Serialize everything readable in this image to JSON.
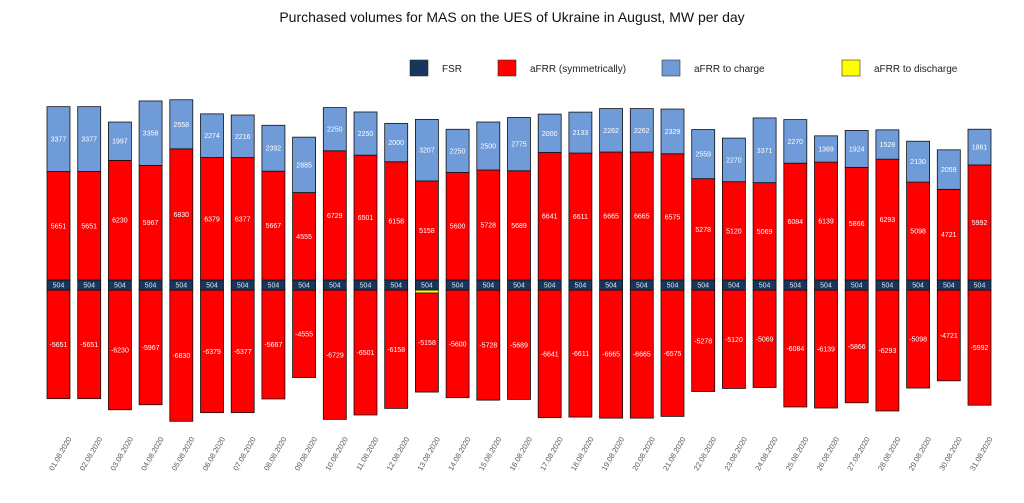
{
  "chart_data": {
    "type": "bar",
    "stacked": true,
    "title": "Purchased volumes for MAS on the UES of Ukraine in August, MW per day",
    "xlabel": "",
    "ylabel": "",
    "legend_position": "top-right",
    "colors": {
      "FSR": "#17365d",
      "aFRR (symmetrically)": "#ff0000",
      "aFRR to charge": "#6f9bd8",
      "aFRR to discharge": "#ffff00"
    },
    "categories": [
      "01.08.2020",
      "02.08.2020",
      "03.08.2020",
      "04.08.2020",
      "05.08.2020",
      "06.08.2020",
      "07.08.2020",
      "08.08.2020",
      "09.08.2020",
      "10.08.2020",
      "11.08.2020",
      "12.08.2020",
      "13.08.2020",
      "14.08.2020",
      "15.08.2020",
      "16.08.2020",
      "17.08.2020",
      "18.08.2020",
      "19.08.2020",
      "20.08.2020",
      "21.08.2020",
      "22.08.2020",
      "23.08.2020",
      "24.08.2020",
      "25.08.2020",
      "26.08.2020",
      "27.08.2020",
      "28.08.2020",
      "29.08.2020",
      "30.08.2020",
      "31.08.2020"
    ],
    "series": [
      {
        "name": "FSR",
        "values": [
          504,
          504,
          504,
          504,
          504,
          504,
          504,
          504,
          504,
          504,
          504,
          504,
          504,
          504,
          504,
          504,
          504,
          504,
          504,
          504,
          504,
          504,
          504,
          504,
          504,
          504,
          504,
          504,
          504,
          504,
          504
        ]
      },
      {
        "name": "aFRR (symmetrically)",
        "values": [
          5651,
          5651,
          6230,
          5967,
          6830,
          6379,
          6377,
          5667,
          4555,
          6729,
          6501,
          6158,
          5158,
          5600,
          5728,
          5689,
          6641,
          6611,
          6665,
          6665,
          6575,
          5278,
          5120,
          5069,
          6084,
          6139,
          5866,
          6293,
          5098,
          4721,
          5992
        ]
      },
      {
        "name": "aFRR to charge",
        "values": [
          3377,
          3377,
          1997,
          3358,
          2558,
          2274,
          2216,
          2392,
          2885,
          2250,
          2250,
          2000,
          3207,
          2250,
          2500,
          2775,
          2000,
          2133,
          2262,
          2262,
          2329,
          2559,
          2270,
          3371,
          2270,
          1369,
          1924,
          1528,
          2130,
          2059,
          1861
        ]
      },
      {
        "name": "aFRR to discharge",
        "values": [
          0,
          0,
          0,
          0,
          0,
          0,
          0,
          0,
          0,
          0,
          0,
          0,
          150,
          0,
          0,
          0,
          0,
          0,
          0,
          0,
          0,
          0,
          0,
          0,
          0,
          0,
          0,
          0,
          0,
          0,
          0
        ]
      }
    ]
  }
}
